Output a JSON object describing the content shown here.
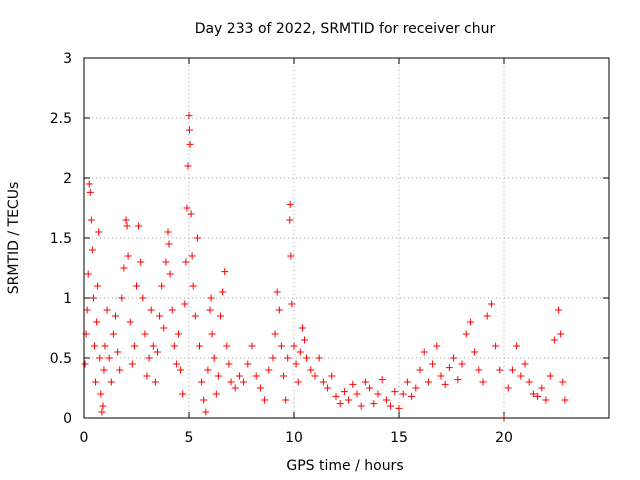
{
  "chart_data": {
    "type": "scatter",
    "title": "Day 233 of 2022, SRMTID for receiver chur",
    "xlabel": "GPS time / hours",
    "ylabel": "SRMTID / TECUs",
    "xlim": [
      0,
      25
    ],
    "ylim": [
      0,
      3
    ],
    "xticks": [
      0,
      5,
      10,
      15,
      20
    ],
    "yticks": [
      0,
      0.5,
      1,
      1.5,
      2,
      2.5,
      3
    ],
    "ytick_labels": [
      "0",
      "0.5",
      "1",
      "1.5",
      "2",
      "2.5",
      "3"
    ],
    "xtick_labels": [
      "0",
      "5",
      "10",
      "15",
      "20"
    ],
    "grid": true,
    "marker": "plus",
    "series": [
      {
        "name": "SRMTID",
        "color": "#ff0000",
        "points": [
          [
            0.05,
            0.45
          ],
          [
            0.1,
            0.7
          ],
          [
            0.15,
            0.9
          ],
          [
            0.2,
            1.2
          ],
          [
            0.25,
            1.95
          ],
          [
            0.3,
            1.88
          ],
          [
            0.35,
            1.65
          ],
          [
            0.4,
            1.4
          ],
          [
            0.45,
            1.0
          ],
          [
            0.5,
            0.6
          ],
          [
            0.55,
            0.3
          ],
          [
            0.6,
            0.8
          ],
          [
            0.65,
            1.1
          ],
          [
            0.7,
            1.55
          ],
          [
            0.75,
            0.5
          ],
          [
            0.8,
            0.2
          ],
          [
            0.85,
            0.05
          ],
          [
            0.9,
            0.1
          ],
          [
            0.95,
            0.4
          ],
          [
            1.0,
            0.6
          ],
          [
            1.1,
            0.9
          ],
          [
            1.2,
            0.5
          ],
          [
            1.3,
            0.3
          ],
          [
            1.4,
            0.7
          ],
          [
            1.5,
            0.85
          ],
          [
            1.6,
            0.55
          ],
          [
            1.7,
            0.4
          ],
          [
            1.8,
            1.0
          ],
          [
            1.9,
            1.25
          ],
          [
            2.0,
            1.65
          ],
          [
            2.05,
            1.6
          ],
          [
            2.1,
            1.35
          ],
          [
            2.2,
            0.8
          ],
          [
            2.3,
            0.45
          ],
          [
            2.4,
            0.6
          ],
          [
            2.5,
            1.1
          ],
          [
            2.6,
            1.6
          ],
          [
            2.7,
            1.3
          ],
          [
            2.8,
            1.0
          ],
          [
            2.9,
            0.7
          ],
          [
            3.0,
            0.35
          ],
          [
            3.1,
            0.5
          ],
          [
            3.2,
            0.9
          ],
          [
            3.3,
            0.6
          ],
          [
            3.4,
            0.3
          ],
          [
            3.5,
            0.55
          ],
          [
            3.6,
            0.85
          ],
          [
            3.7,
            1.1
          ],
          [
            3.8,
            0.75
          ],
          [
            3.9,
            1.3
          ],
          [
            4.0,
            1.55
          ],
          [
            4.05,
            1.45
          ],
          [
            4.1,
            1.2
          ],
          [
            4.2,
            0.9
          ],
          [
            4.3,
            0.6
          ],
          [
            4.4,
            0.45
          ],
          [
            4.5,
            0.7
          ],
          [
            4.6,
            0.4
          ],
          [
            4.7,
            0.2
          ],
          [
            4.8,
            0.95
          ],
          [
            4.85,
            1.3
          ],
          [
            4.9,
            1.75
          ],
          [
            4.95,
            2.1
          ],
          [
            5.0,
            2.52
          ],
          [
            5.02,
            2.4
          ],
          [
            5.05,
            2.28
          ],
          [
            5.1,
            1.7
          ],
          [
            5.15,
            1.35
          ],
          [
            5.2,
            1.1
          ],
          [
            5.3,
            0.85
          ],
          [
            5.4,
            1.5
          ],
          [
            5.5,
            0.6
          ],
          [
            5.6,
            0.3
          ],
          [
            5.7,
            0.15
          ],
          [
            5.8,
            0.05
          ],
          [
            5.9,
            0.4
          ],
          [
            6.0,
            0.9
          ],
          [
            6.05,
            1.0
          ],
          [
            6.1,
            0.7
          ],
          [
            6.2,
            0.5
          ],
          [
            6.3,
            0.2
          ],
          [
            6.4,
            0.35
          ],
          [
            6.5,
            0.85
          ],
          [
            6.6,
            1.05
          ],
          [
            6.7,
            1.22
          ],
          [
            6.8,
            0.6
          ],
          [
            6.9,
            0.45
          ],
          [
            7.0,
            0.3
          ],
          [
            7.2,
            0.25
          ],
          [
            7.4,
            0.35
          ],
          [
            7.6,
            0.3
          ],
          [
            7.8,
            0.45
          ],
          [
            8.0,
            0.6
          ],
          [
            8.2,
            0.35
          ],
          [
            8.4,
            0.25
          ],
          [
            8.6,
            0.15
          ],
          [
            8.8,
            0.4
          ],
          [
            9.0,
            0.5
          ],
          [
            9.1,
            0.7
          ],
          [
            9.2,
            1.05
          ],
          [
            9.3,
            0.9
          ],
          [
            9.4,
            0.6
          ],
          [
            9.5,
            0.35
          ],
          [
            9.6,
            0.15
          ],
          [
            9.7,
            0.5
          ],
          [
            9.8,
            1.65
          ],
          [
            9.82,
            1.78
          ],
          [
            9.85,
            1.35
          ],
          [
            9.9,
            0.95
          ],
          [
            10.0,
            0.6
          ],
          [
            10.1,
            0.45
          ],
          [
            10.2,
            0.3
          ],
          [
            10.3,
            0.55
          ],
          [
            10.4,
            0.75
          ],
          [
            10.5,
            0.65
          ],
          [
            10.6,
            0.5
          ],
          [
            10.8,
            0.4
          ],
          [
            11.0,
            0.35
          ],
          [
            11.2,
            0.5
          ],
          [
            11.4,
            0.3
          ],
          [
            11.6,
            0.25
          ],
          [
            11.8,
            0.35
          ],
          [
            12.0,
            0.18
          ],
          [
            12.2,
            0.12
          ],
          [
            12.4,
            0.22
          ],
          [
            12.6,
            0.15
          ],
          [
            12.8,
            0.28
          ],
          [
            13.0,
            0.2
          ],
          [
            13.2,
            0.1
          ],
          [
            13.4,
            0.3
          ],
          [
            13.6,
            0.25
          ],
          [
            13.8,
            0.12
          ],
          [
            14.0,
            0.2
          ],
          [
            14.2,
            0.32
          ],
          [
            14.4,
            0.15
          ],
          [
            14.6,
            0.1
          ],
          [
            14.8,
            0.22
          ],
          [
            15.0,
            0.08
          ],
          [
            15.2,
            0.2
          ],
          [
            15.4,
            0.3
          ],
          [
            15.6,
            0.18
          ],
          [
            15.8,
            0.25
          ],
          [
            16.0,
            0.4
          ],
          [
            16.2,
            0.55
          ],
          [
            16.4,
            0.3
          ],
          [
            16.6,
            0.45
          ],
          [
            16.8,
            0.6
          ],
          [
            17.0,
            0.35
          ],
          [
            17.2,
            0.28
          ],
          [
            17.4,
            0.42
          ],
          [
            17.6,
            0.5
          ],
          [
            17.8,
            0.32
          ],
          [
            18.0,
            0.45
          ],
          [
            18.2,
            0.7
          ],
          [
            18.4,
            0.8
          ],
          [
            18.6,
            0.55
          ],
          [
            18.8,
            0.4
          ],
          [
            19.0,
            0.3
          ],
          [
            19.2,
            0.85
          ],
          [
            19.4,
            0.95
          ],
          [
            19.6,
            0.6
          ],
          [
            19.8,
            0.4
          ],
          [
            20.0,
            0.0
          ],
          [
            20.2,
            0.25
          ],
          [
            20.4,
            0.4
          ],
          [
            20.6,
            0.6
          ],
          [
            20.8,
            0.35
          ],
          [
            21.0,
            0.45
          ],
          [
            21.2,
            0.3
          ],
          [
            21.4,
            0.2
          ],
          [
            21.6,
            0.18
          ],
          [
            21.8,
            0.25
          ],
          [
            22.0,
            0.15
          ],
          [
            22.2,
            0.35
          ],
          [
            22.4,
            0.65
          ],
          [
            22.6,
            0.9
          ],
          [
            22.7,
            0.7
          ],
          [
            22.8,
            0.3
          ],
          [
            22.9,
            0.15
          ]
        ]
      }
    ]
  }
}
